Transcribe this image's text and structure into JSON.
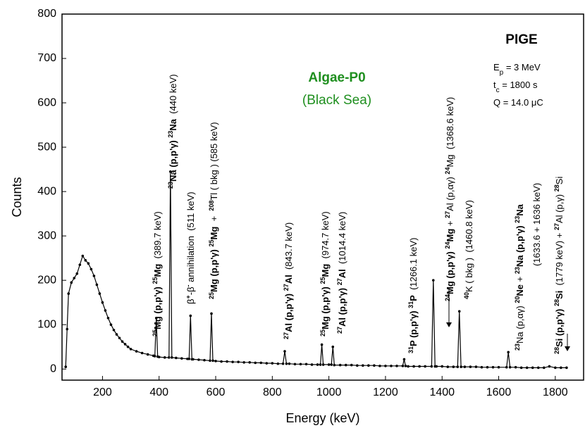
{
  "chart_data": {
    "type": "line",
    "title": "Algae-P0",
    "title_color": "#1f8f1f",
    "subtitle": "(Black Sea)",
    "xlabel": "Energy (keV)",
    "ylabel": "Counts",
    "info": {
      "title": "PIGE",
      "lines": [
        [
          [
            "E",
            "normal"
          ],
          [
            "p",
            "sub"
          ],
          [
            " = 3 MeV",
            "normal"
          ]
        ],
        [
          [
            "t",
            "normal"
          ],
          [
            "c",
            "sub"
          ],
          [
            " = 1800 s",
            "normal"
          ]
        ],
        [
          [
            "Q = 14.0 μC",
            "normal"
          ]
        ]
      ]
    },
    "annotations": [
      [
        [
          "25",
          "sup"
        ],
        [
          "Mg",
          "bold"
        ],
        [
          " (p,p'γ) ",
          "bold"
        ],
        [
          "25",
          "sup"
        ],
        [
          "Mg",
          "bold"
        ],
        [
          "  (389.7 keV)",
          "normal"
        ]
      ],
      [
        [
          "23",
          "sup"
        ],
        [
          "Na (p,p'γ) ",
          "bold"
        ],
        [
          "23",
          "sup"
        ],
        [
          "Na",
          "bold"
        ],
        [
          "  (440 keV)",
          "normal"
        ]
      ],
      [
        [
          "β",
          "normal"
        ],
        [
          "+",
          "sup"
        ],
        [
          "-β",
          "normal"
        ],
        [
          "-",
          "sup"
        ],
        [
          " annihilation  (511 keV)",
          "normal"
        ]
      ],
      [
        [
          "25",
          "sup"
        ],
        [
          "Mg (p,p'γ) ",
          "bold"
        ],
        [
          "25",
          "sup"
        ],
        [
          "Mg",
          "bold"
        ],
        [
          "  +  ",
          "normal"
        ],
        [
          "208",
          "sup"
        ],
        [
          "Tl ( bkg ) (585 keV)",
          "normal"
        ]
      ],
      [
        [
          "27",
          "sup"
        ],
        [
          "Al (p,p'γ) ",
          "bold"
        ],
        [
          "27",
          "sup"
        ],
        [
          "Al",
          "bold"
        ],
        [
          "  (843.7 keV)",
          "normal"
        ]
      ],
      [
        [
          "25",
          "sup"
        ],
        [
          "Mg (p,p'γ) ",
          "bold"
        ],
        [
          "25",
          "sup"
        ],
        [
          "Mg",
          "bold"
        ],
        [
          "  (974.7 keV)",
          "normal"
        ]
      ],
      [
        [
          "27",
          "sup"
        ],
        [
          "Al (p,p'γ) ",
          "bold"
        ],
        [
          "27",
          "sup"
        ],
        [
          "Al",
          "bold"
        ],
        [
          "  (1014.4 keV)",
          "normal"
        ]
      ],
      [
        [
          "31",
          "sup"
        ],
        [
          "P (p,p'γ) ",
          "bold"
        ],
        [
          "31",
          "sup"
        ],
        [
          "P",
          "bold"
        ],
        [
          "  (1266.1 keV)",
          "normal"
        ]
      ],
      [
        [
          "24",
          "sup"
        ],
        [
          "Mg (p,p'γ) ",
          "bold"
        ],
        [
          "24",
          "sup"
        ],
        [
          "Mg",
          "bold"
        ],
        [
          " + ",
          "normal"
        ],
        [
          "27",
          "sup"
        ],
        [
          "Al (p,αγ) ",
          "normal"
        ],
        [
          "24",
          "sup"
        ],
        [
          "Mg  (1368.6 keV)",
          "normal"
        ]
      ],
      [
        [
          "40",
          "sup"
        ],
        [
          "K ( bkg )  (1460.8 keV)",
          "normal"
        ]
      ],
      [
        [
          "23",
          "sup"
        ],
        [
          "Na (p,αγ) ",
          "normal"
        ],
        [
          "20",
          "sup"
        ],
        [
          "Ne",
          "bold"
        ],
        [
          " + ",
          "normal"
        ],
        [
          "23",
          "sup"
        ],
        [
          "Na (p,p'γ) ",
          "bold"
        ],
        [
          "23",
          "sup"
        ],
        [
          "Na",
          "bold"
        ]
      ],
      [
        [
          "(1633.6 + 1636 keV)",
          "normal"
        ]
      ],
      [
        [
          "28",
          "sup"
        ],
        [
          "Si (p,p'γ) ",
          "bold"
        ],
        [
          "28",
          "sup"
        ],
        [
          "Si",
          "bold"
        ],
        [
          "  (1779 keV) + ",
          "normal"
        ],
        [
          "27",
          "sup"
        ],
        [
          "Al (p,γ) ",
          "normal"
        ],
        [
          "28",
          "sup"
        ],
        [
          "Si",
          "normal"
        ]
      ]
    ],
    "x": [
      70,
      75,
      80,
      90,
      100,
      110,
      120,
      130,
      140,
      150,
      160,
      170,
      180,
      190,
      200,
      210,
      220,
      230,
      240,
      250,
      260,
      270,
      280,
      290,
      300,
      320,
      340,
      360,
      380,
      385,
      390,
      395,
      400,
      420,
      435,
      440,
      445,
      460,
      480,
      500,
      506,
      511,
      516,
      520,
      540,
      560,
      580,
      585,
      590,
      600,
      620,
      640,
      660,
      680,
      700,
      720,
      740,
      760,
      780,
      800,
      820,
      838,
      844,
      850,
      860,
      880,
      900,
      920,
      940,
      960,
      970,
      975,
      980,
      1000,
      1009,
      1014,
      1019,
      1040,
      1060,
      1080,
      1100,
      1120,
      1140,
      1160,
      1180,
      1200,
      1220,
      1240,
      1261,
      1266,
      1271,
      1280,
      1300,
      1320,
      1340,
      1363,
      1369,
      1375,
      1380,
      1400,
      1420,
      1440,
      1455,
      1461,
      1467,
      1480,
      1500,
      1520,
      1540,
      1560,
      1580,
      1600,
      1628,
      1634,
      1640,
      1660,
      1680,
      1700,
      1720,
      1740,
      1760,
      1779,
      1800,
      1820,
      1840
    ],
    "series": [
      {
        "color": "#000000",
        "values": [
          5,
          90,
          170,
          195,
          205,
          215,
          235,
          255,
          245,
          238,
          225,
          210,
          190,
          170,
          150,
          132,
          115,
          100,
          88,
          78,
          70,
          62,
          56,
          50,
          45,
          40,
          36,
          33,
          30,
          29,
          115,
          28,
          27,
          26,
          26,
          445,
          26,
          25,
          24,
          23,
          23,
          120,
          22,
          22,
          21,
          20,
          19,
          125,
          19,
          18,
          17,
          17,
          16,
          16,
          15,
          15,
          14,
          14,
          13,
          13,
          12,
          12,
          40,
          12,
          12,
          11,
          11,
          11,
          10,
          10,
          10,
          55,
          10,
          10,
          10,
          50,
          9,
          9,
          9,
          9,
          8,
          8,
          8,
          8,
          7,
          7,
          7,
          7,
          7,
          22,
          7,
          6,
          6,
          6,
          6,
          6,
          200,
          6,
          6,
          6,
          5,
          5,
          5,
          130,
          5,
          5,
          5,
          5,
          4,
          4,
          4,
          4,
          4,
          38,
          4,
          4,
          3,
          3,
          3,
          3,
          3,
          6,
          3,
          3,
          3
        ]
      }
    ],
    "xlim": [
      57,
      1900
    ],
    "xticks": [
      200,
      400,
      600,
      800,
      1000,
      1200,
      1400,
      1600,
      1800
    ],
    "ylim": [
      -25,
      800
    ],
    "yticks": [
      0,
      100,
      200,
      300,
      400,
      500,
      600,
      700,
      800
    ]
  }
}
